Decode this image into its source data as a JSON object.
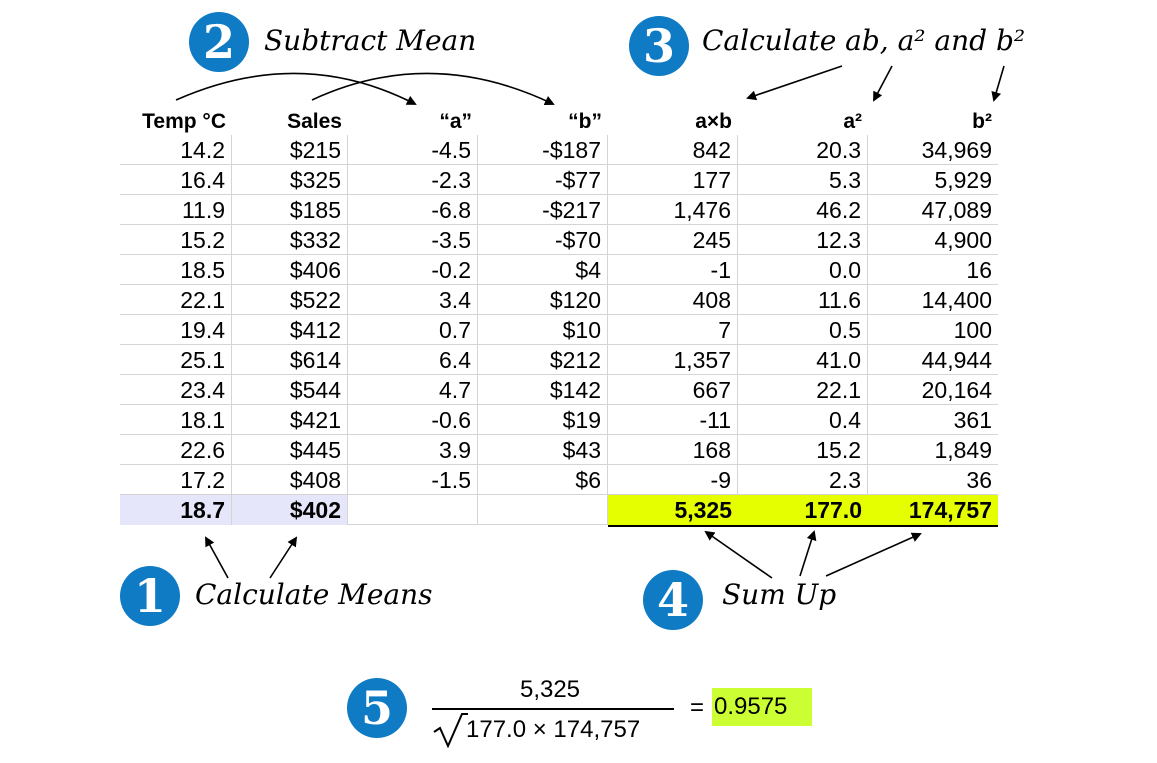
{
  "steps": {
    "s1": {
      "number": "1",
      "caption": "Calculate Means"
    },
    "s2": {
      "number": "2",
      "caption": "Subtract Mean"
    },
    "s3": {
      "number": "3",
      "caption": "Calculate ab, a² and b²"
    },
    "s4": {
      "number": "4",
      "caption": "Sum Up"
    },
    "s5": {
      "number": "5"
    }
  },
  "table": {
    "headers": [
      "Temp °C",
      "Sales",
      "“a”",
      "“b”",
      "a×b",
      "a²",
      "b²"
    ],
    "rows": [
      [
        "14.2",
        "$215",
        "-4.5",
        "-$187",
        "842",
        "20.3",
        "34,969"
      ],
      [
        "16.4",
        "$325",
        "-2.3",
        "-$77",
        "177",
        "5.3",
        "5,929"
      ],
      [
        "11.9",
        "$185",
        "-6.8",
        "-$217",
        "1,476",
        "46.2",
        "47,089"
      ],
      [
        "15.2",
        "$332",
        "-3.5",
        "-$70",
        "245",
        "12.3",
        "4,900"
      ],
      [
        "18.5",
        "$406",
        "-0.2",
        "$4",
        "-1",
        "0.0",
        "16"
      ],
      [
        "22.1",
        "$522",
        "3.4",
        "$120",
        "408",
        "11.6",
        "14,400"
      ],
      [
        "19.4",
        "$412",
        "0.7",
        "$10",
        "7",
        "0.5",
        "100"
      ],
      [
        "25.1",
        "$614",
        "6.4",
        "$212",
        "1,357",
        "41.0",
        "44,944"
      ],
      [
        "23.4",
        "$544",
        "4.7",
        "$142",
        "667",
        "22.1",
        "20,164"
      ],
      [
        "18.1",
        "$421",
        "-0.6",
        "$19",
        "-11",
        "0.4",
        "361"
      ],
      [
        "22.6",
        "$445",
        "3.9",
        "$43",
        "168",
        "15.2",
        "1,849"
      ],
      [
        "17.2",
        "$408",
        "-1.5",
        "$6",
        "-9",
        "2.3",
        "36"
      ]
    ],
    "summary": [
      "18.7",
      "$402",
      "",
      "",
      "5,325",
      "177.0",
      "174,757"
    ]
  },
  "formula": {
    "numerator": "5,325",
    "denominator": "177.0 × 174,757",
    "equals": "=",
    "result": "0.9575"
  },
  "colors": {
    "badge": "#0f7bc4",
    "means_highlight": "#e6e6fa",
    "sums_highlight": "#e6ff00",
    "result_highlight": "#ccff33"
  }
}
